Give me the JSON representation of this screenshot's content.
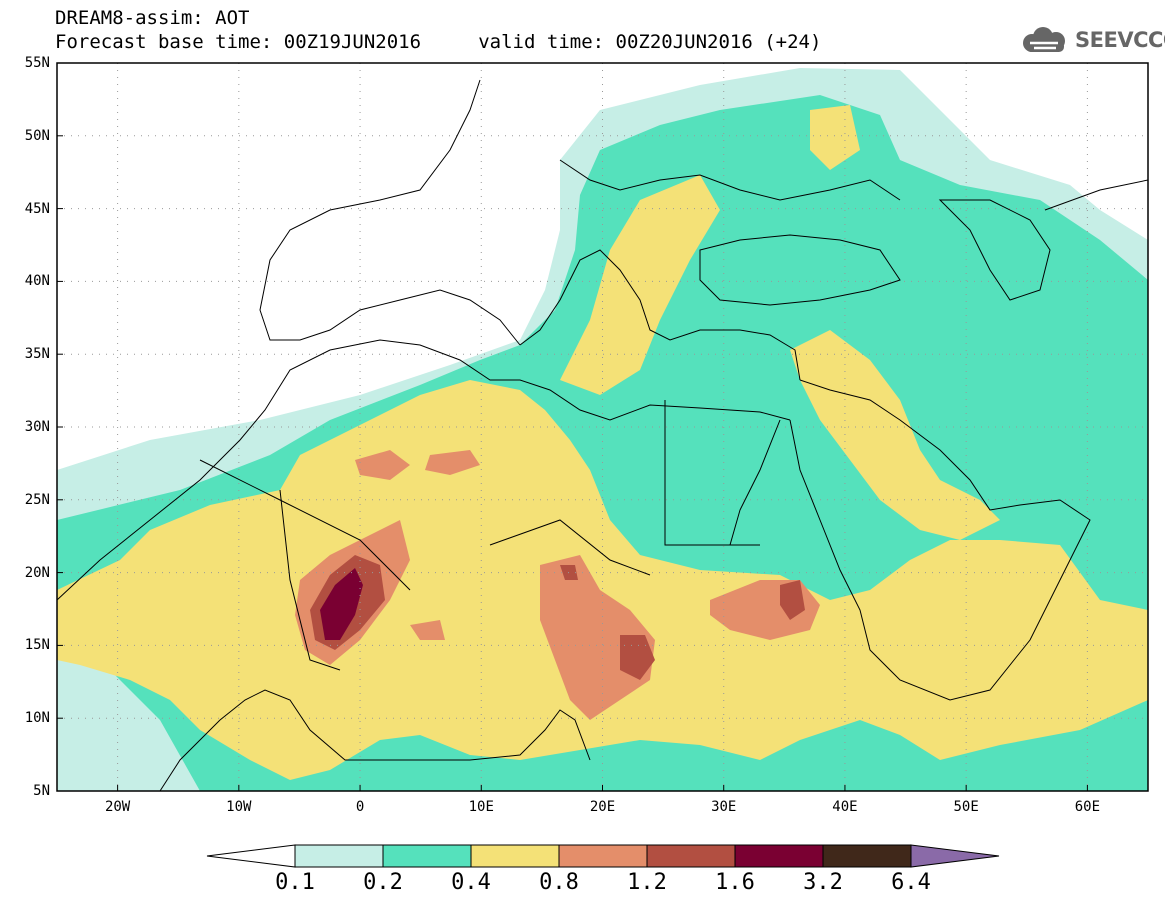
{
  "header": {
    "title": "DREAM8-assim: AOT",
    "subtitle": "Forecast base time: 00Z19JUN2016     valid time: 00Z20JUN2016 (+24)",
    "logo_text": "SEEVCCC"
  },
  "map": {
    "lat_labels": [
      "55N",
      "50N",
      "45N",
      "40N",
      "35N",
      "30N",
      "25N",
      "20N",
      "15N",
      "10N",
      "5N"
    ],
    "lon_labels": [
      "20W",
      "10W",
      "0",
      "10E",
      "20E",
      "30E",
      "40E",
      "50E",
      "60E"
    ],
    "extent": {
      "lon_min": -25,
      "lon_max": 65,
      "lat_min": 5,
      "lat_max": 55
    },
    "grid": "dotted"
  },
  "colorbar": {
    "labels": [
      "0.1",
      "0.2",
      "0.4",
      "0.8",
      "1.2",
      "1.6",
      "3.2",
      "6.4"
    ],
    "colors": [
      "#ffffff",
      "#c6eee6",
      "#55e1bc",
      "#f4e177",
      "#e48e6a",
      "#b24f41",
      "#7a0032",
      "#40281a",
      "#8a6aa8"
    ]
  }
}
